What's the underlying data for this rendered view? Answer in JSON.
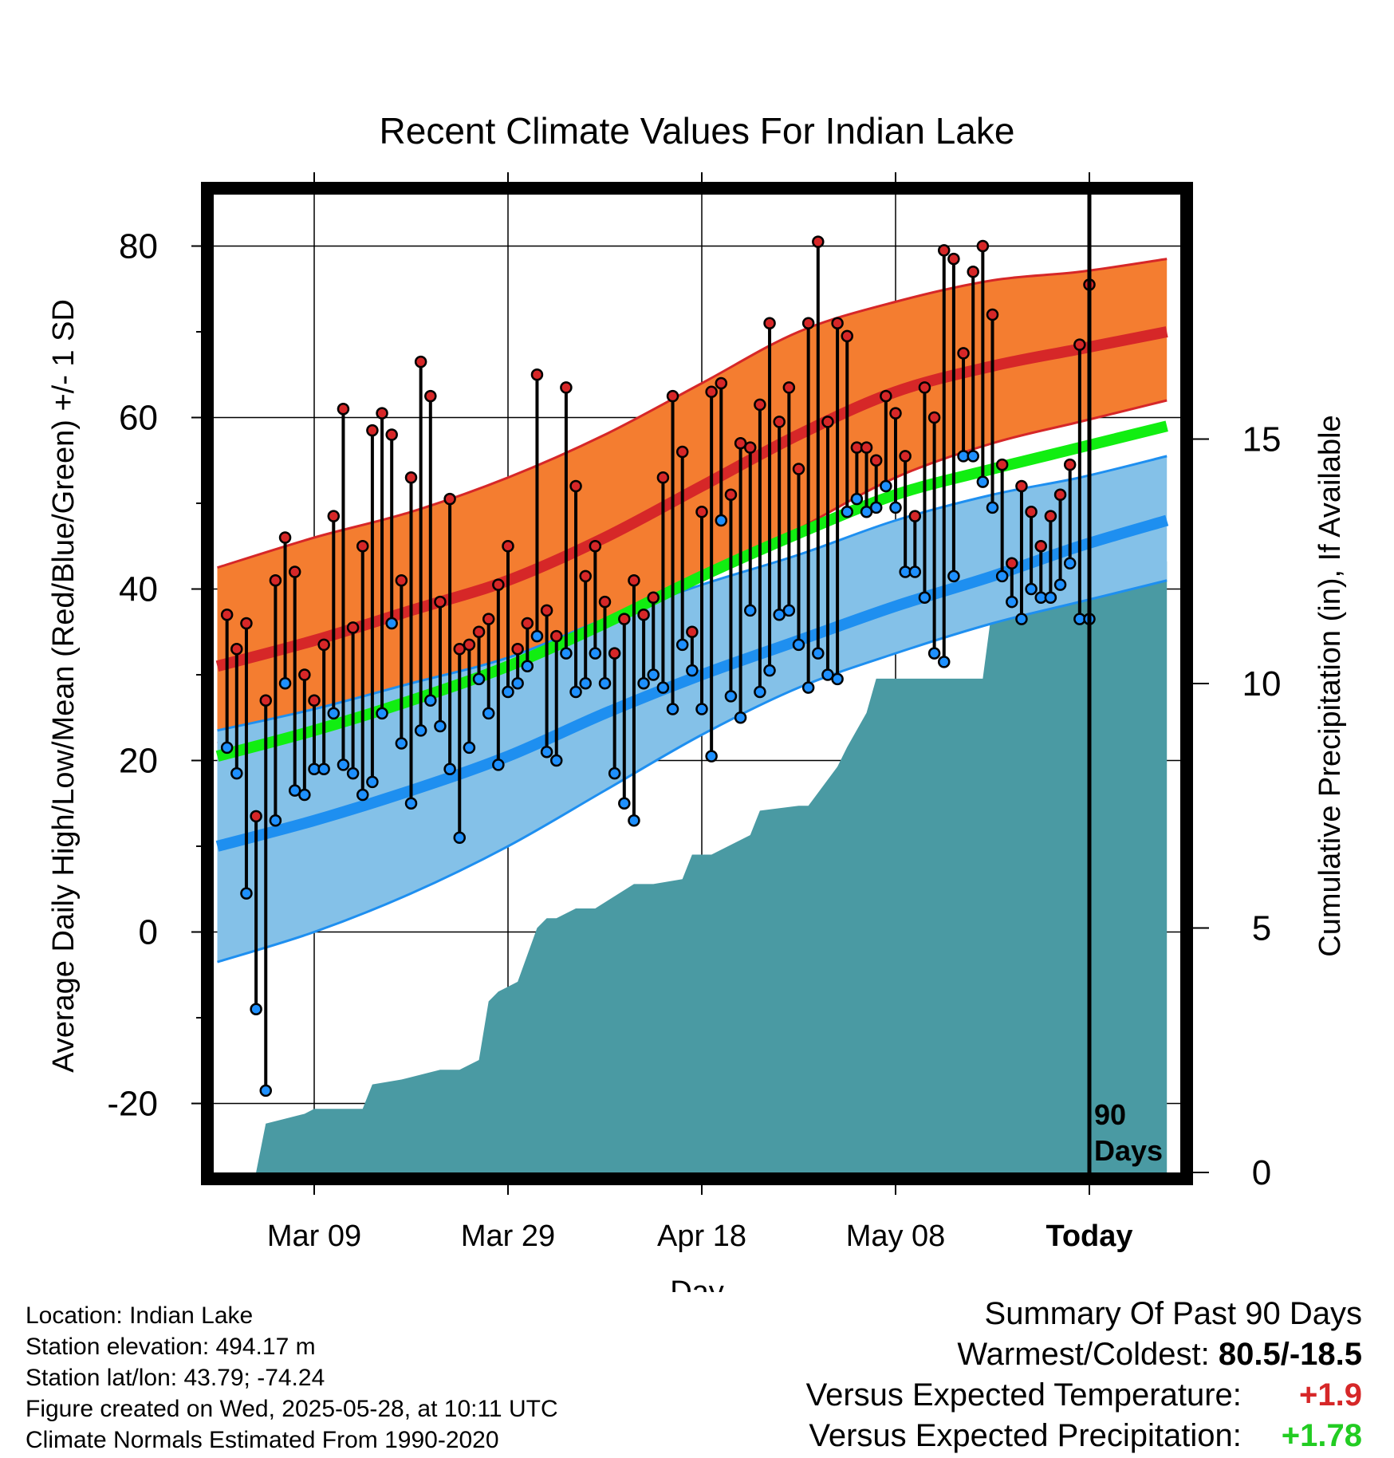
{
  "chart_data": {
    "type": "line",
    "title": "Recent Climate Values For Indian Lake",
    "xlabel": "Day",
    "ylabel": "Average Daily High/Low/Mean (Red/Blue/Green) +/- 1 SD",
    "y2label": "Cumulative Precipitation (in), If Available",
    "ylim": [
      -28,
      86
    ],
    "y2lim": [
      0,
      24.8
    ],
    "xlim": [
      -89,
      9
    ],
    "x_ticks": [
      {
        "day": -79,
        "label": "Mar 09"
      },
      {
        "day": -59,
        "label": "Mar 29"
      },
      {
        "day": -39,
        "label": "Apr 18"
      },
      {
        "day": -19,
        "label": "May 08"
      },
      {
        "day": 1,
        "label": "Today"
      }
    ],
    "y_ticks": [
      -20,
      0,
      20,
      40,
      60,
      80
    ],
    "y2_ticks": [
      0,
      5,
      10,
      15
    ],
    "today_label": "90\nDays",
    "normals": {
      "days": [
        -89,
        -79,
        -69,
        -59,
        -49,
        -39,
        -29,
        -19,
        -9,
        0,
        9
      ],
      "high_mean": [
        31,
        34,
        37.5,
        41,
        46,
        52,
        58,
        63,
        66,
        68,
        70
      ],
      "high_sd_upper": [
        42.5,
        46,
        49,
        53,
        58,
        64,
        70,
        73.5,
        76,
        77,
        78.5
      ],
      "high_sd_lower": [
        22,
        25,
        28.5,
        31,
        35,
        41,
        47,
        53,
        57,
        59.5,
        62
      ],
      "low_mean": [
        10,
        13,
        16.5,
        20.5,
        25.5,
        30,
        34,
        38,
        41.5,
        45,
        48
      ],
      "low_sd_upper": [
        23.5,
        26,
        29,
        32,
        36.5,
        40.5,
        44,
        48,
        51,
        53,
        55.5
      ],
      "low_sd_lower": [
        -3.5,
        0,
        4.5,
        10,
        16.5,
        23,
        28.5,
        32.5,
        36,
        38.5,
        41
      ],
      "avg_mean": [
        20.5,
        23.5,
        27,
        31,
        36,
        41.5,
        46.5,
        51,
        54,
        56.5,
        59
      ]
    },
    "series": [
      {
        "name": "High",
        "values": [
          37,
          33,
          36,
          13.5,
          27,
          41,
          46,
          42,
          30,
          27,
          33.5,
          48.5,
          61,
          35.5,
          45,
          58.5,
          60.5,
          58,
          41,
          53,
          66.5,
          62.5,
          38.5,
          50.5,
          33,
          33.5,
          35,
          36.5,
          40.5,
          45,
          33,
          36,
          65,
          37.5,
          34.5,
          63.5,
          52,
          41.5,
          45,
          38.5,
          32.5,
          36.5,
          41,
          37,
          39,
          53,
          62.5,
          56,
          35,
          49,
          63,
          64,
          51,
          57,
          56.5,
          61.5,
          71,
          59.5,
          63.5,
          54,
          71,
          80.5,
          59.5,
          71,
          69.5,
          56.5,
          56.5,
          55,
          62.5,
          60.5,
          55.5,
          48.5,
          63.5,
          60,
          79.5,
          78.5,
          67.5,
          77,
          80,
          72,
          54.5,
          43,
          52,
          49,
          45,
          48.5,
          51,
          54.5,
          68.5,
          75.5
        ]
      },
      {
        "name": "Low",
        "values": [
          21.5,
          18.5,
          4.5,
          -9,
          -18.5,
          13,
          29,
          16.5,
          16,
          19,
          19,
          25.5,
          19.5,
          18.5,
          16,
          17.5,
          25.5,
          36,
          22,
          15,
          23.5,
          27,
          24,
          19,
          11,
          21.5,
          29.5,
          25.5,
          19.5,
          28,
          29,
          31,
          34.5,
          21,
          20,
          32.5,
          28,
          29,
          32.5,
          29,
          18.5,
          15,
          13,
          29,
          30,
          28.5,
          26,
          33.5,
          30.5,
          26,
          20.5,
          48,
          27.5,
          25,
          37.5,
          28,
          30.5,
          37,
          37.5,
          33.5,
          28.5,
          32.5,
          30,
          29.5,
          49,
          50.5,
          49,
          49.5,
          52,
          49.5,
          42,
          42,
          39,
          32.5,
          31.5,
          41.5,
          55.5,
          55.5,
          52.5,
          49.5,
          41.5,
          38.5,
          36.5,
          40,
          39,
          39,
          40.5,
          43,
          36.5,
          36.5
        ]
      },
      {
        "name": "Cumulative Precipitation",
        "days": [
          -89,
          -85,
          -84,
          -82,
          -80,
          -79,
          -78,
          -74,
          -73,
          -70,
          -66,
          -64,
          -62,
          -61,
          -60,
          -58,
          -56,
          -55,
          -54,
          -52,
          -50,
          -46,
          -44,
          -41,
          -40,
          -38,
          -34,
          -33,
          -29,
          -28,
          -25,
          -24,
          -22,
          -21,
          -18,
          -17,
          -10,
          -9,
          -7,
          -4,
          -2,
          -1,
          0,
          9
        ],
        "values": [
          0,
          0,
          1,
          1.1,
          1.2,
          1.3,
          1.3,
          1.3,
          1.8,
          1.9,
          2.1,
          2.1,
          2.3,
          3.5,
          3.7,
          3.9,
          5,
          5.2,
          5.2,
          5.4,
          5.4,
          5.9,
          5.9,
          6,
          6.5,
          6.5,
          6.9,
          7.4,
          7.5,
          7.5,
          8.3,
          8.7,
          9.4,
          10.1,
          10.1,
          10.1,
          10.1,
          11.6,
          11.6,
          11.8,
          12,
          12.3,
          12.5,
          12.5
        ]
      }
    ]
  },
  "footer": {
    "location": "Location: Indian Lake",
    "elevation": "Station elevation: 494.17 m",
    "latlon": "Station lat/lon: 43.79; -74.24",
    "created": "Figure created on Wed, 2025-05-28, at 10:11 UTC",
    "normals": "Climate Normals Estimated From 1990-2020"
  },
  "summary": {
    "title": "Summary Of Past 90 Days",
    "extremes_label": "Warmest/Coldest:",
    "extremes_value": "80.5/-18.5",
    "temp_label": "Versus Expected Temperature:",
    "temp_value": "+1.9",
    "precip_label": "Versus Expected Precipitation:",
    "precip_value": "+1.78"
  },
  "colors": {
    "high_band": "#f47d30",
    "high_mean": "#d62728",
    "low_band": "#84c1e8",
    "low_mean": "#1e8ff0",
    "avg_mean": "#11ee11",
    "precip": "#4a9aa3",
    "high_marker": "#d62728",
    "low_marker": "#1e90ff"
  }
}
